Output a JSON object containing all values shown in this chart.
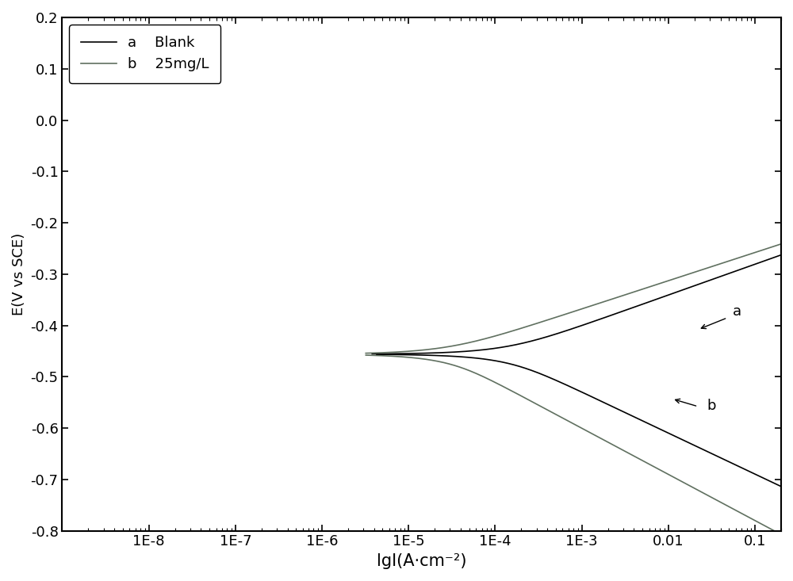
{
  "xlabel": "lgI(A·cm⁻²)",
  "ylabel": "E(V vs SCE)",
  "ylim": [
    -0.8,
    0.2
  ],
  "xlim_log": [
    1e-09,
    0.2
  ],
  "yticks": [
    0.2,
    0.1,
    0.0,
    -0.1,
    -0.2,
    -0.3,
    -0.4,
    -0.5,
    -0.6,
    -0.7,
    -0.8
  ],
  "xtick_labels": [
    "1E-8",
    "1E-7",
    "1E-6",
    "1E-5",
    "1E-4",
    "1E-3",
    "0.01",
    "0.1"
  ],
  "xtick_positions": [
    1e-08,
    1e-07,
    1e-06,
    1e-05,
    0.0001,
    0.001,
    0.01,
    0.1
  ],
  "blank_color": "#000000",
  "inhibitor_color": "#607060",
  "annotation_a_text": "a",
  "annotation_b_text": "b",
  "figsize": [
    10.0,
    7.33
  ],
  "dpi": 100,
  "E_corr_blank": -0.456,
  "i_corr_blank": 0.00012,
  "ba_blank": 0.06,
  "bc_blank": 0.08,
  "E_corr_inh": -0.456,
  "i_corr_inh": 2.5e-05,
  "ba_inh": 0.055,
  "bc_inh": 0.09,
  "i_min_blank": 3e-06,
  "i_min_inh": 3e-06
}
